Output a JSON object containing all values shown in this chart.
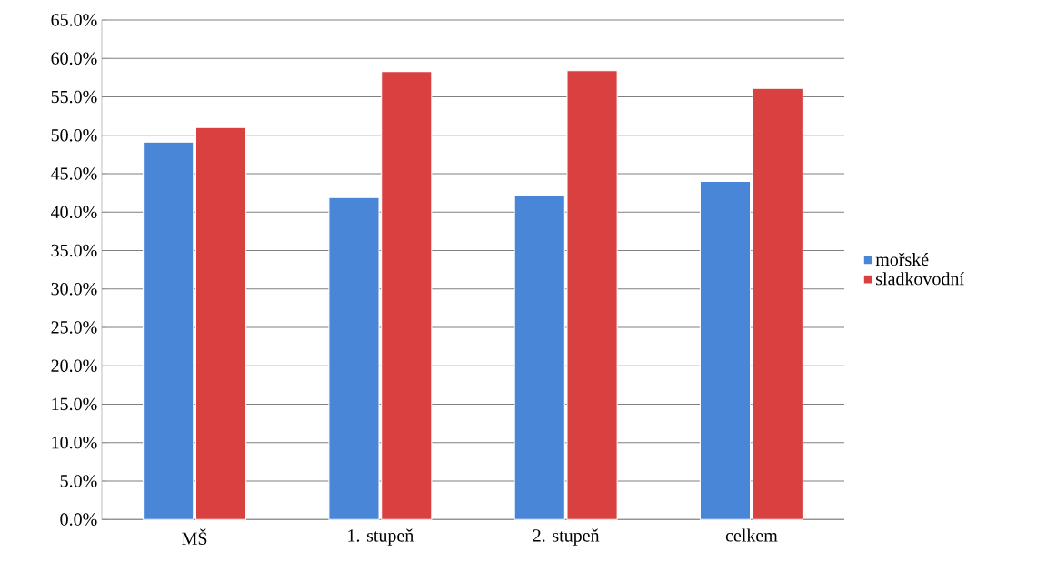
{
  "chart_data": {
    "type": "bar",
    "categories": [
      "MŠ",
      "1. stupeň",
      "2. stupeň",
      "celkem"
    ],
    "series": [
      {
        "name": "mořské",
        "color": "#4a86d8",
        "values": [
          49.1,
          41.9,
          42.2,
          44.0
        ]
      },
      {
        "name": "sladkovodní",
        "color": "#d94040",
        "values": [
          51.0,
          58.3,
          58.4,
          56.1
        ]
      }
    ],
    "ylim": [
      0,
      65
    ],
    "yticks": [
      {
        "value": 0,
        "label": "0.0%"
      },
      {
        "value": 5,
        "label": "5.0%"
      },
      {
        "value": 10,
        "label": "10.0%"
      },
      {
        "value": 15,
        "label": "15.0%"
      },
      {
        "value": 20,
        "label": "20.0%"
      },
      {
        "value": 25,
        "label": "25.0%"
      },
      {
        "value": 30,
        "label": "30.0%"
      },
      {
        "value": 35,
        "label": "35.0%"
      },
      {
        "value": 40,
        "label": "40.0%"
      },
      {
        "value": 45,
        "label": "45.0%"
      },
      {
        "value": 50,
        "label": "50.0%"
      },
      {
        "value": 55,
        "label": "55.0%"
      },
      {
        "value": 60,
        "label": "60.0%"
      },
      {
        "value": 65,
        "label": "65.0%"
      }
    ],
    "grid": "y",
    "legend": "right"
  }
}
